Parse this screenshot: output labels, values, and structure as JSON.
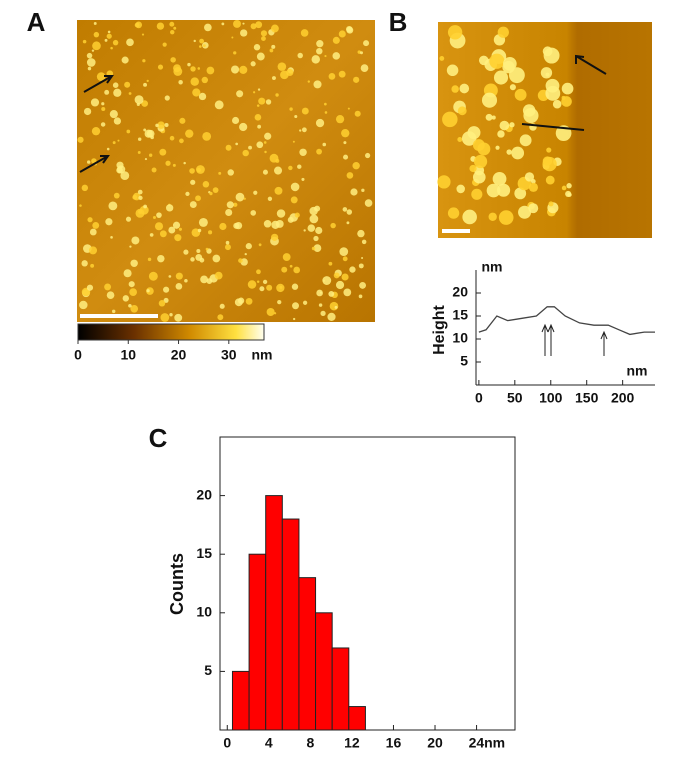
{
  "panel_labels": [
    "A",
    "B",
    "C"
  ],
  "colorbar": {
    "lim": [
      0,
      37
    ],
    "ticks": [
      0,
      10,
      20,
      30
    ],
    "unit": "nm"
  },
  "chart_data": [
    {
      "type": "line",
      "y_label": "Height",
      "y_unit": "nm",
      "x_unit": "nm",
      "x": [
        0,
        10,
        25,
        40,
        60,
        80,
        95,
        105,
        120,
        140,
        160,
        180,
        195,
        210,
        230,
        245
      ],
      "values": [
        11.5,
        12,
        15,
        14,
        14.5,
        15,
        17,
        17,
        15,
        13.5,
        13,
        13,
        12,
        11,
        11.5,
        11.5
      ],
      "color": "#444444",
      "xlim": [
        -4,
        245
      ],
      "ylim": [
        0,
        25
      ],
      "xticks": [
        0,
        50,
        100,
        150,
        200
      ],
      "yticks": [
        5,
        10,
        15,
        20
      ]
    },
    {
      "type": "histogram",
      "y_label": "Counts",
      "bins": [
        0.5,
        2.1,
        3.7,
        5.3,
        6.9,
        8.5,
        10.1,
        11.7,
        13.3
      ],
      "values": [
        5,
        15,
        20,
        18,
        13,
        10,
        7,
        2
      ],
      "color": "#ff0000",
      "xlim": [
        -0.7,
        27.7
      ],
      "ylim": [
        0,
        25
      ],
      "xticks": [
        0,
        4,
        8,
        12,
        16,
        20,
        {
          "value": 24,
          "label": "24nm"
        }
      ],
      "yticks": [
        5,
        10,
        15,
        20
      ]
    }
  ]
}
